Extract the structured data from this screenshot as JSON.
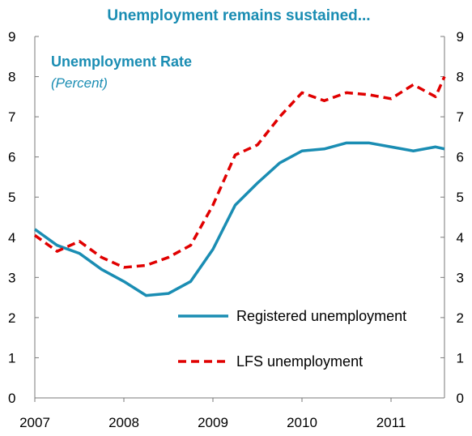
{
  "chart_data": {
    "type": "line",
    "title": "Unemployment remains sustained...",
    "inset_title": "Unemployment Rate",
    "inset_subtitle": "(Percent)",
    "x_labels": [
      "2007",
      "2008",
      "2009",
      "2010",
      "2011"
    ],
    "x_range": [
      2007.0,
      2011.6
    ],
    "ylim": [
      0,
      9
    ],
    "yticks": [
      "0",
      "1",
      "2",
      "3",
      "4",
      "5",
      "6",
      "7",
      "8",
      "9"
    ],
    "grid": false,
    "legend_placement": "bottom-right",
    "series": [
      {
        "name": "Registered unemployment",
        "color": "#1a8db3",
        "style": "solid",
        "x": [
          2007.0,
          2007.25,
          2007.5,
          2007.75,
          2008.0,
          2008.25,
          2008.5,
          2008.75,
          2009.0,
          2009.25,
          2009.5,
          2009.75,
          2010.0,
          2010.25,
          2010.5,
          2010.75,
          2011.0,
          2011.25,
          2011.5,
          2011.6
        ],
        "values": [
          4.2,
          3.8,
          3.6,
          3.2,
          2.9,
          2.55,
          2.6,
          2.9,
          3.7,
          4.8,
          5.35,
          5.85,
          6.15,
          6.2,
          6.35,
          6.35,
          6.25,
          6.15,
          6.25,
          6.2
        ]
      },
      {
        "name": "LFS unemployment",
        "color": "#e00000",
        "style": "dashed",
        "x": [
          2007.0,
          2007.25,
          2007.5,
          2007.75,
          2008.0,
          2008.25,
          2008.5,
          2008.75,
          2009.0,
          2009.25,
          2009.5,
          2009.75,
          2010.0,
          2010.25,
          2010.5,
          2010.75,
          2011.0,
          2011.25,
          2011.5,
          2011.6
        ],
        "values": [
          4.05,
          3.65,
          3.9,
          3.5,
          3.25,
          3.3,
          3.5,
          3.8,
          4.8,
          6.05,
          6.3,
          7.0,
          7.6,
          7.4,
          7.6,
          7.55,
          7.45,
          7.8,
          7.5,
          8.0
        ]
      }
    ]
  }
}
